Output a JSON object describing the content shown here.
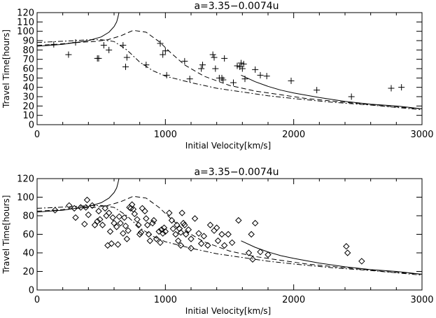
{
  "chart_data": [
    {
      "type": "scatter",
      "title": "a=3.35−0.0074u",
      "xlabel": "Initial Velocity[km/s]",
      "ylabel": "Travel Time[hours]",
      "xlim": [
        0,
        3000
      ],
      "ylim": [
        0,
        120
      ],
      "xticks": [
        "0",
        "1000",
        "2000",
        "3000"
      ],
      "yticks": [
        "0",
        "10",
        "20",
        "30",
        "40",
        "50",
        "60",
        "70",
        "80",
        "90",
        "100",
        "110",
        "120"
      ],
      "grid": false,
      "marker": "plus",
      "points": [
        [
          130,
          86
        ],
        [
          300,
          88
        ],
        [
          470,
          71
        ],
        [
          480,
          71
        ],
        [
          520,
          85
        ],
        [
          560,
          80
        ],
        [
          670,
          85
        ],
        [
          690,
          62
        ],
        [
          700,
          72
        ],
        [
          850,
          64
        ],
        [
          960,
          87
        ],
        [
          980,
          75
        ],
        [
          1000,
          79
        ],
        [
          1010,
          53
        ],
        [
          1150,
          68
        ],
        [
          1190,
          49
        ],
        [
          1280,
          60
        ],
        [
          1290,
          64
        ],
        [
          1370,
          75
        ],
        [
          1380,
          72
        ],
        [
          1390,
          60
        ],
        [
          1420,
          50
        ],
        [
          1440,
          50
        ],
        [
          1450,
          48
        ],
        [
          1460,
          71
        ],
        [
          1530,
          45
        ],
        [
          1560,
          63
        ],
        [
          1580,
          62
        ],
        [
          1590,
          66
        ],
        [
          1600,
          60
        ],
        [
          1610,
          65
        ],
        [
          1620,
          49
        ],
        [
          1700,
          59
        ],
        [
          1740,
          53
        ],
        [
          1790,
          52
        ],
        [
          1980,
          47
        ],
        [
          2180,
          37
        ],
        [
          2450,
          30
        ],
        [
          2760,
          39
        ],
        [
          2840,
          40
        ],
        [
          245,
          75
        ]
      ],
      "series": [
        {
          "style": "solid",
          "points": [
            [
              0,
              84
            ],
            [
              100,
              85
            ],
            [
              200,
              86
            ],
            [
              300,
              88
            ],
            [
              400,
              90
            ],
            [
              500,
              94
            ],
            [
              560,
              99
            ],
            [
              600,
              105
            ],
            [
              620,
              110
            ],
            [
              630,
              115
            ],
            [
              640,
              121
            ]
          ]
        },
        {
          "style": "solid",
          "points": [
            [
              1590,
              53
            ],
            [
              1700,
              46
            ],
            [
              1800,
              41
            ],
            [
              1900,
              37
            ],
            [
              2000,
              34
            ],
            [
              2200,
              29
            ],
            [
              2400,
              25
            ],
            [
              2600,
              22
            ],
            [
              2800,
              20
            ],
            [
              3000,
              17
            ]
          ]
        },
        {
          "style": "dashed",
          "points": [
            [
              0,
              85
            ],
            [
              150,
              86
            ],
            [
              300,
              88
            ],
            [
              450,
              89
            ],
            [
              550,
              91
            ],
            [
              650,
              95
            ],
            [
              750,
              101
            ],
            [
              850,
              99
            ],
            [
              950,
              89
            ],
            [
              1050,
              76
            ],
            [
              1150,
              64
            ],
            [
              1300,
              52
            ],
            [
              1500,
              42
            ],
            [
              1700,
              36
            ],
            [
              1900,
              32
            ],
            [
              2100,
              28
            ],
            [
              2400,
              24
            ],
            [
              2700,
              20
            ],
            [
              3000,
              17
            ]
          ]
        },
        {
          "style": "dashdot",
          "points": [
            [
              0,
              88
            ],
            [
              150,
              89
            ],
            [
              300,
              90
            ],
            [
              400,
              91
            ],
            [
              500,
              91
            ],
            [
              600,
              89
            ],
            [
              700,
              80
            ],
            [
              800,
              67
            ],
            [
              900,
              58
            ],
            [
              1000,
              52
            ],
            [
              1200,
              45
            ],
            [
              1400,
              39
            ],
            [
              1600,
              35
            ],
            [
              1800,
              31
            ],
            [
              2000,
              28
            ],
            [
              2300,
              24
            ],
            [
              2600,
              21
            ],
            [
              3000,
              16
            ]
          ]
        }
      ]
    },
    {
      "type": "scatter",
      "title": "a=3.35−0.0074u",
      "xlabel": "Initial Velocity[km/s]",
      "ylabel": "Travel Time[hours]",
      "xlim": [
        0,
        3000
      ],
      "ylim": [
        0,
        120
      ],
      "xticks": [
        "0",
        "1000",
        "2000",
        "3000"
      ],
      "yticks": [
        "0",
        "20",
        "40",
        "60",
        "80",
        "100",
        "120"
      ],
      "grid": false,
      "marker": "diamond",
      "points": [
        [
          140,
          86
        ],
        [
          250,
          91
        ],
        [
          290,
          88
        ],
        [
          300,
          78
        ],
        [
          340,
          89
        ],
        [
          370,
          71
        ],
        [
          380,
          89
        ],
        [
          390,
          97
        ],
        [
          400,
          81
        ],
        [
          430,
          91
        ],
        [
          450,
          70
        ],
        [
          470,
          74
        ],
        [
          480,
          85
        ],
        [
          490,
          76
        ],
        [
          510,
          70
        ],
        [
          530,
          88
        ],
        [
          540,
          80
        ],
        [
          550,
          48
        ],
        [
          560,
          83
        ],
        [
          570,
          63
        ],
        [
          580,
          50
        ],
        [
          590,
          78
        ],
        [
          600,
          72
        ],
        [
          620,
          68
        ],
        [
          630,
          49
        ],
        [
          640,
          79
        ],
        [
          650,
          72
        ],
        [
          670,
          61
        ],
        [
          680,
          78
        ],
        [
          690,
          69
        ],
        [
          700,
          55
        ],
        [
          710,
          64
        ],
        [
          720,
          89
        ],
        [
          730,
          88
        ],
        [
          740,
          92
        ],
        [
          750,
          87
        ],
        [
          760,
          82
        ],
        [
          780,
          76
        ],
        [
          790,
          70
        ],
        [
          800,
          60
        ],
        [
          810,
          62
        ],
        [
          820,
          88
        ],
        [
          840,
          85
        ],
        [
          850,
          77
        ],
        [
          860,
          70
        ],
        [
          870,
          60
        ],
        [
          880,
          53
        ],
        [
          900,
          72
        ],
        [
          910,
          75
        ],
        [
          930,
          55
        ],
        [
          950,
          63
        ],
        [
          960,
          51
        ],
        [
          970,
          65
        ],
        [
          980,
          61
        ],
        [
          990,
          67
        ],
        [
          1000,
          63
        ],
        [
          1030,
          83
        ],
        [
          1050,
          75
        ],
        [
          1060,
          66
        ],
        [
          1080,
          60
        ],
        [
          1090,
          70
        ],
        [
          1100,
          53
        ],
        [
          1110,
          66
        ],
        [
          1120,
          62
        ],
        [
          1130,
          83
        ],
        [
          1140,
          72
        ],
        [
          1150,
          70
        ],
        [
          1160,
          60
        ],
        [
          1180,
          65
        ],
        [
          1200,
          55
        ],
        [
          1230,
          77
        ],
        [
          1260,
          61
        ],
        [
          1280,
          50
        ],
        [
          1300,
          58
        ],
        [
          1330,
          48
        ],
        [
          1350,
          70
        ],
        [
          1380,
          64
        ],
        [
          1400,
          67
        ],
        [
          1410,
          53
        ],
        [
          1440,
          60
        ],
        [
          1460,
          48
        ],
        [
          1490,
          60
        ],
        [
          1520,
          51
        ],
        [
          1570,
          75
        ],
        [
          1650,
          40
        ],
        [
          1670,
          60
        ],
        [
          1680,
          33
        ],
        [
          1700,
          72
        ],
        [
          1740,
          41
        ],
        [
          1800,
          38
        ],
        [
          2410,
          47
        ],
        [
          2420,
          40
        ],
        [
          2530,
          31
        ],
        [
          1200,
          45
        ],
        [
          1120,
          48
        ]
      ],
      "series": [
        {
          "style": "solid",
          "points": [
            [
              0,
              84
            ],
            [
              100,
              85
            ],
            [
              200,
              86
            ],
            [
              300,
              88
            ],
            [
              400,
              90
            ],
            [
              500,
              94
            ],
            [
              560,
              99
            ],
            [
              600,
              105
            ],
            [
              620,
              110
            ],
            [
              630,
              115
            ],
            [
              640,
              121
            ]
          ]
        },
        {
          "style": "solid",
          "points": [
            [
              1590,
              53
            ],
            [
              1700,
              46
            ],
            [
              1800,
              41
            ],
            [
              1900,
              37
            ],
            [
              2000,
              34
            ],
            [
              2200,
              29
            ],
            [
              2400,
              25
            ],
            [
              2600,
              22
            ],
            [
              2800,
              20
            ],
            [
              3000,
              17
            ]
          ]
        },
        {
          "style": "dashed",
          "points": [
            [
              0,
              85
            ],
            [
              150,
              86
            ],
            [
              300,
              88
            ],
            [
              450,
              89
            ],
            [
              550,
              91
            ],
            [
              650,
              95
            ],
            [
              750,
              101
            ],
            [
              850,
              99
            ],
            [
              950,
              89
            ],
            [
              1050,
              76
            ],
            [
              1150,
              64
            ],
            [
              1300,
              52
            ],
            [
              1500,
              42
            ],
            [
              1700,
              36
            ],
            [
              1900,
              32
            ],
            [
              2100,
              28
            ],
            [
              2400,
              24
            ],
            [
              2700,
              20
            ],
            [
              3000,
              17
            ]
          ]
        },
        {
          "style": "dashdot",
          "points": [
            [
              0,
              88
            ],
            [
              150,
              89
            ],
            [
              300,
              90
            ],
            [
              400,
              91
            ],
            [
              500,
              91
            ],
            [
              600,
              89
            ],
            [
              700,
              80
            ],
            [
              800,
              67
            ],
            [
              900,
              58
            ],
            [
              1000,
              52
            ],
            [
              1200,
              45
            ],
            [
              1400,
              39
            ],
            [
              1600,
              35
            ],
            [
              1800,
              31
            ],
            [
              2000,
              28
            ],
            [
              2300,
              24
            ],
            [
              2600,
              21
            ],
            [
              3000,
              16
            ]
          ]
        }
      ]
    }
  ]
}
